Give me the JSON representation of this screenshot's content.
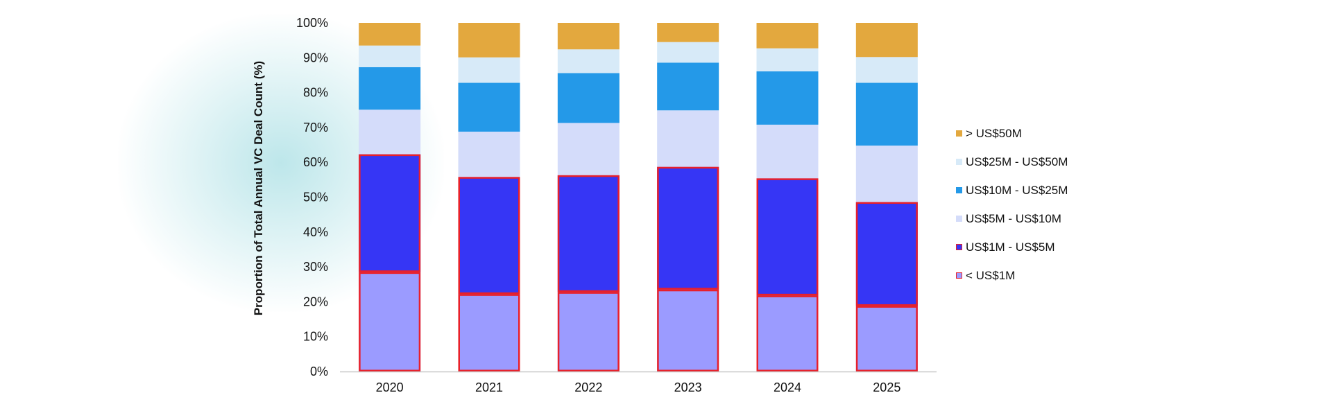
{
  "chart_data": {
    "type": "bar",
    "stacked": true,
    "categories": [
      "2020",
      "2021",
      "2022",
      "2023",
      "2024",
      "2025"
    ],
    "ylabel": "Proportion of Total Annual VC Deal Count (%)",
    "xlabel": "",
    "ylim": [
      0,
      100
    ],
    "yticks": [
      "0%",
      "10%",
      "20%",
      "30%",
      "40%",
      "50%",
      "60%",
      "70%",
      "80%",
      "90%",
      "100%"
    ],
    "grid": false,
    "legend_position": "right",
    "series": [
      {
        "name": "< US$1M",
        "color": "#9B9BFF",
        "highlight": true,
        "values": [
          28.5,
          22.2,
          22.8,
          23.5,
          21.8,
          18.8
        ]
      },
      {
        "name": "US$1M - US$5M",
        "color": "#3636F5",
        "highlight": true,
        "values": [
          33.8,
          33.6,
          33.5,
          35.2,
          33.6,
          29.8
        ]
      },
      {
        "name": "US$5M - US$10M",
        "color": "#D4DCFA",
        "highlight": false,
        "values": [
          12.8,
          13.0,
          15.0,
          16.2,
          15.4,
          16.2
        ]
      },
      {
        "name": "US$10M - US$25M",
        "color": "#2499E8",
        "highlight": false,
        "values": [
          12.2,
          14.0,
          14.3,
          13.7,
          15.3,
          18.0
        ]
      },
      {
        "name": "US$25M - US$50M",
        "color": "#D7EAF8",
        "highlight": false,
        "values": [
          6.2,
          7.3,
          6.8,
          5.9,
          6.6,
          7.4
        ]
      },
      {
        "name": "> US$50M",
        "color": "#E3A83E",
        "highlight": false,
        "values": [
          6.5,
          9.9,
          7.6,
          5.5,
          7.3,
          9.8
        ]
      }
    ],
    "highlight_color": "#E8202A",
    "axis_color": "#C8C8C8"
  }
}
